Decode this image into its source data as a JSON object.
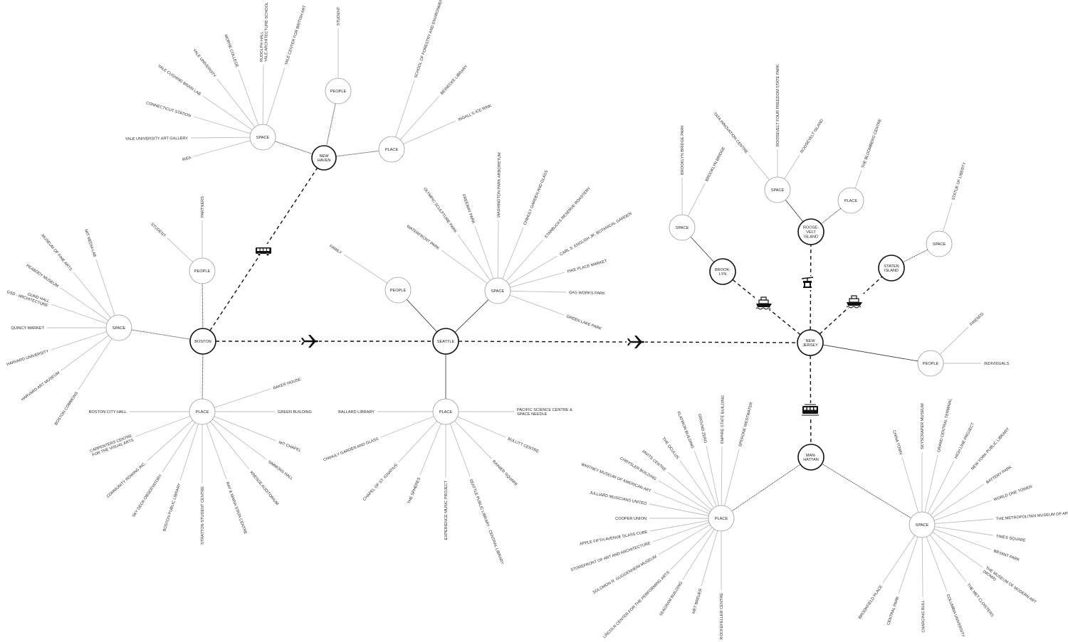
{
  "colors": {
    "background": "#ffffff",
    "spoke": "#bdbdbd",
    "text": "#2a2a2a",
    "ring": "#111111"
  },
  "nodes": [
    {
      "id": "newhaven",
      "kind": "city",
      "label": [
        "NEW",
        "HAVEN"
      ]
    },
    {
      "id": "nh_space",
      "kind": "category",
      "label": [
        "SPACE"
      ],
      "items": [
        [
          "IKEA"
        ],
        [
          "YALE UNIVERSITY ART GALLERY"
        ],
        [
          "CONNECTICUT STATION"
        ],
        [
          "YALE CUSHING BRAIN LAB"
        ],
        [
          "YALE UNIVERSITY"
        ],
        [
          "MORSE COLLEGE"
        ],
        [
          "RUDOLPH HALL",
          "YALE ARCHITECTURE SCHOOL"
        ],
        [
          "YALE CENTER FOR BRITISH ART"
        ]
      ]
    },
    {
      "id": "nh_people",
      "kind": "category",
      "label": [
        "PEOPLE"
      ],
      "items": [
        [
          "STUDENT"
        ]
      ]
    },
    {
      "id": "nh_place",
      "kind": "category",
      "label": [
        "PLACE"
      ],
      "items": [
        [
          "SCHOOL OF FORESTRY AND ENVIRONMENT"
        ],
        [
          "BEINECKE LIBRARY"
        ],
        [
          "INGALL'S ICE RINK"
        ]
      ]
    },
    {
      "id": "boston",
      "kind": "city",
      "label": [
        "BOSTON"
      ]
    },
    {
      "id": "bo_people",
      "kind": "category",
      "label": [
        "PEOPLE"
      ],
      "items": [
        [
          "PARTNERS"
        ],
        [
          "STUDENT"
        ]
      ]
    },
    {
      "id": "bo_space",
      "kind": "category",
      "label": [
        "SPACE"
      ],
      "items": [
        [
          "MIT MEDIA LAB"
        ],
        [
          "MUSEUM OF FINE ARTS"
        ],
        [
          "PEABODY MUSEUM"
        ],
        [
          "GUND HALL",
          "GSD - ARCHITECTURE"
        ],
        [
          "QUINCY MARKET"
        ],
        [
          "HARVARD  UNIVERSITY"
        ],
        [
          "HARVARD ART MUSEUM"
        ],
        [
          "BOSTON COMMONS"
        ]
      ]
    },
    {
      "id": "bo_place",
      "kind": "category",
      "label": [
        "PLACE"
      ],
      "items": [
        [
          "BOSTON CITY HALL"
        ],
        [
          "CARPENTERS CENTRE",
          "FOR THE VISUAL ARTS"
        ],
        [
          "COMMUNITY ROWING INC."
        ],
        [
          "SKY DECK OBSERVATORY"
        ],
        [
          "BOSTON PUBLIC LIBRARY"
        ],
        [
          "STRATTON STUDENT CENTRE"
        ],
        [
          "RAY & MARIA STATA CENTRE"
        ],
        [
          "KRESGE AUDITORIUM"
        ],
        [
          "SIMMONS HALL"
        ],
        [
          "MIT CHAPEL"
        ],
        [
          "GREEN BUILDING"
        ],
        [
          "BAKER HOUSE"
        ]
      ]
    },
    {
      "id": "seattle",
      "kind": "city",
      "label": [
        "SEATTLE"
      ]
    },
    {
      "id": "se_people",
      "kind": "category",
      "label": [
        "PEOPLE"
      ],
      "items": [
        [
          "FAMILY"
        ]
      ]
    },
    {
      "id": "se_space",
      "kind": "category",
      "label": [
        "SPACE"
      ],
      "items": [
        [
          "WATERFRONT PARK"
        ],
        [
          "OLYMPIC SCULPTURE PARK"
        ],
        [
          "FREEWAY PARK"
        ],
        [
          "WASHINGTON PARK ARBORETUM"
        ],
        [
          "CHIHULY GARDEN AND GLASS"
        ],
        [
          "STARBUCKS RESERVE ROASTERY"
        ],
        [
          "CARL S. ENGLISH JR. BOTANICAL GARDEN"
        ],
        [
          "PIKE PLACE MARKET"
        ],
        [
          "GAS WORKS PARK"
        ],
        [
          "GREEN LAKE PARK"
        ]
      ]
    },
    {
      "id": "se_place",
      "kind": "category",
      "label": [
        "PLACE"
      ],
      "items": [
        [
          "BALLARD LIBRARY"
        ],
        [
          "CHIHULY GARDEN AND GLASS"
        ],
        [
          "CHAPEL OF ST. IGNATIUS"
        ],
        [
          "THE SPHERES"
        ],
        [
          "EXPERIENCE MUSIC PROJECT"
        ],
        [
          "SEATTLE PUBLIC LIBRARY - CENTRAL LIBRARY"
        ],
        [
          "RAINIER SQUARE"
        ],
        [
          "BULLITT CENTRE"
        ],
        [
          "PACIFIC SCIENCE CENTRE &",
          "SPACE NEEDLE"
        ]
      ]
    },
    {
      "id": "newjersey",
      "kind": "city",
      "label": [
        "NEW",
        "JERSEY"
      ]
    },
    {
      "id": "nj_people",
      "kind": "category",
      "label": [
        "PEOPLE"
      ],
      "items": [
        [
          "FRIENDS"
        ],
        [
          "INDIVIDUALS"
        ]
      ]
    },
    {
      "id": "brooklyn",
      "kind": "city",
      "label": [
        "BROOK-",
        "LYN"
      ]
    },
    {
      "id": "bk_space",
      "kind": "category",
      "label": [
        "SPACE"
      ],
      "items": [
        [
          "BROOKLYN BRIDGE PARK"
        ],
        [
          "BROOKLYN BRIDGE"
        ]
      ]
    },
    {
      "id": "roosevelt",
      "kind": "city",
      "label": [
        "ROOSE-",
        "VELT",
        "ISLAND"
      ]
    },
    {
      "id": "ri_space",
      "kind": "category",
      "label": [
        "SPACE"
      ],
      "items": [
        [
          "TATA INNOVATION CENTRE"
        ],
        [
          "ROOSEVELT FOUR FREEDOM STATE PARK"
        ],
        [
          "ROOSEVELT ISLAND"
        ]
      ]
    },
    {
      "id": "ri_place",
      "kind": "category",
      "label": [
        "PLACE"
      ],
      "items": [
        [
          "THE BLOOMBERG CENTRE"
        ]
      ]
    },
    {
      "id": "staten",
      "kind": "city",
      "label": [
        "STATEN",
        "ISLAND"
      ]
    },
    {
      "id": "si_space",
      "kind": "category",
      "label": [
        "SPACE"
      ],
      "items": [
        [
          "STATUE OF LIBERTY"
        ]
      ]
    },
    {
      "id": "manhattan",
      "kind": "city",
      "label": [
        "MAN-",
        "HATTAN"
      ]
    },
    {
      "id": "mh_place",
      "kind": "category",
      "label": [
        "PLACE"
      ],
      "items": [
        [
          "EMPIRE STATE BUILDING"
        ],
        [
          "SPERONE WESTWATER"
        ],
        [
          "GROUND ZERO"
        ],
        [
          "FLATIRON BUILDING"
        ],
        [
          "THE OCULUS"
        ],
        [
          "JAVITS CENTRE"
        ],
        [
          "CHRYSLER BUILDING"
        ],
        [
          "WHITNEY MUSEUM OF AMERICAN ART"
        ],
        [
          "JULLIARD MUSICIANS UNITED"
        ],
        [
          "COOPER UNION"
        ],
        [
          "APPLE FIFTH AVENUE GLASS CUBE"
        ],
        [
          "STOREFRONT OF ART AND ARCHITECTURE"
        ],
        [
          "SOLOMON R. GUGGENHEIM MUSEUM"
        ],
        [
          "LINCOLN CENTER FOR THE PERFORMING ARTS"
        ],
        [
          "SEAGRAM BUILDING"
        ],
        [
          "MET BREUER"
        ],
        [
          "ROCKEFELLER CENTRE"
        ]
      ]
    },
    {
      "id": "mh_space",
      "kind": "category",
      "label": [
        "SPACE"
      ],
      "items": [
        [
          "CHINA TOWN"
        ],
        [
          "SKYSCRAPER MUSEUM"
        ],
        [
          "GRAND CENTRAL TERMINAL"
        ],
        [
          "HIGH LINE PROJECT"
        ],
        [
          "NEW YORK PUBLIC LIBRARY"
        ],
        [
          "BATTERY PARK"
        ],
        [
          "WORLD ONE TOWER"
        ],
        [
          "THE METROPOLITAN MUSEUM OF ART"
        ],
        [
          "TIMES SQUARE"
        ],
        [
          "BRYANT PARK"
        ],
        [
          "THE MUSEUM OF MODERN ART",
          "(MOMA)"
        ],
        [
          "THE MET CLOISTERS"
        ],
        [
          "COLUMBIA UNIVERSITY"
        ],
        [
          "CHARGING BULL"
        ],
        [
          "CENTRAL PARK"
        ],
        [
          "BROOKFIELD PLACE"
        ]
      ]
    }
  ],
  "connections": [
    {
      "from": "newhaven",
      "to": "nh_space",
      "style": "dotted"
    },
    {
      "from": "newhaven",
      "to": "nh_people",
      "style": "dotted"
    },
    {
      "from": "newhaven",
      "to": "nh_place",
      "style": "dotted"
    },
    {
      "from": "boston",
      "to": "bo_people",
      "style": "dotted"
    },
    {
      "from": "boston",
      "to": "bo_space",
      "style": "dotted"
    },
    {
      "from": "boston",
      "to": "bo_place",
      "style": "dotted"
    },
    {
      "from": "seattle",
      "to": "se_people",
      "style": "solid"
    },
    {
      "from": "seattle",
      "to": "se_space",
      "style": "solid"
    },
    {
      "from": "seattle",
      "to": "se_place",
      "style": "solid"
    },
    {
      "from": "newjersey",
      "to": "nj_people",
      "style": "solid"
    },
    {
      "from": "brooklyn",
      "to": "bk_space",
      "style": "solid"
    },
    {
      "from": "roosevelt",
      "to": "ri_space",
      "style": "solid"
    },
    {
      "from": "roosevelt",
      "to": "ri_place",
      "style": "dotted"
    },
    {
      "from": "staten",
      "to": "si_space",
      "style": "dotted"
    },
    {
      "from": "manhattan",
      "to": "mh_place",
      "style": "dotted"
    },
    {
      "from": "manhattan",
      "to": "mh_space",
      "style": "dotted"
    },
    {
      "from": "boston",
      "to": "newhaven",
      "style": "dashed",
      "transport": "bus-icon"
    },
    {
      "from": "boston",
      "to": "seattle",
      "style": "dashed",
      "transport": "airplane-icon"
    },
    {
      "from": "seattle",
      "to": "newjersey",
      "style": "dashed",
      "transport": "airplane-icon"
    },
    {
      "from": "newjersey",
      "to": "brooklyn",
      "style": "dashed",
      "transport": "ferry-icon"
    },
    {
      "from": "newjersey",
      "to": "roosevelt",
      "style": "dashed",
      "transport": "cable-car-icon"
    },
    {
      "from": "newjersey",
      "to": "staten",
      "style": "dashed",
      "transport": "ferry-icon"
    },
    {
      "from": "newjersey",
      "to": "manhattan",
      "style": "dashed",
      "transport": "train-icon"
    }
  ]
}
